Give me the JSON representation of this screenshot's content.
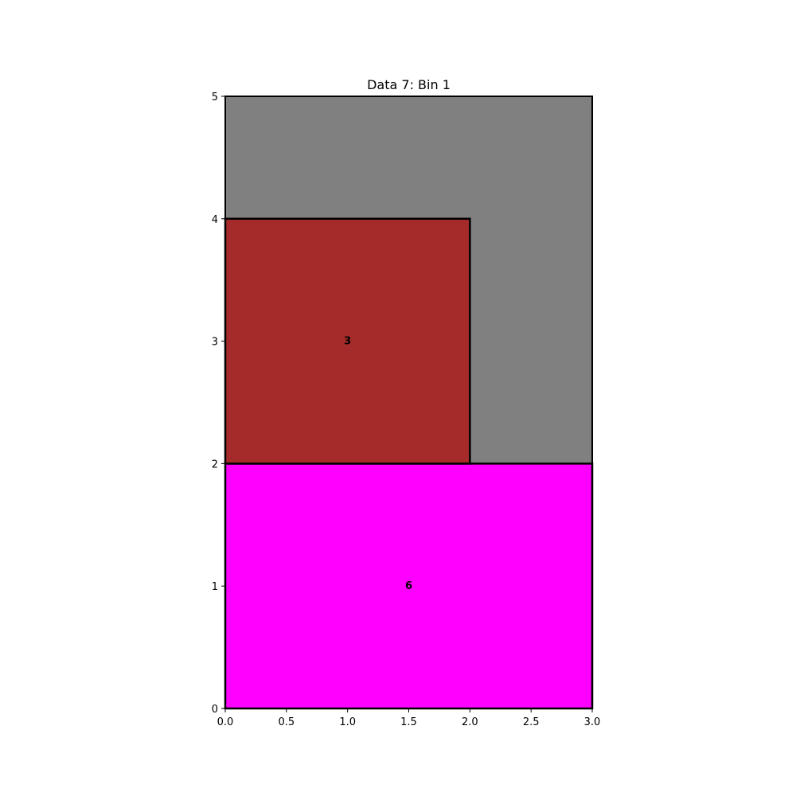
{
  "chart_data": {
    "type": "bin-packing",
    "title": "Data 7: Bin 1",
    "xlim": [
      0,
      3
    ],
    "ylim": [
      0,
      5
    ],
    "xticks": [
      "0.0",
      "0.5",
      "1.0",
      "1.5",
      "2.0",
      "2.5",
      "3.0"
    ],
    "yticks": [
      "0",
      "1",
      "2",
      "3",
      "4",
      "5"
    ],
    "xtick_values": [
      0,
      0.5,
      1,
      1.5,
      2,
      2.5,
      3
    ],
    "ytick_values": [
      0,
      1,
      2,
      3,
      4,
      5
    ],
    "grid": false,
    "bin": {
      "x": 0,
      "y": 0,
      "w": 3,
      "h": 5,
      "color": "#808080"
    },
    "items": [
      {
        "label": "6",
        "x": 0,
        "y": 0,
        "w": 3,
        "h": 2,
        "color": "#ff00ff"
      },
      {
        "label": "3",
        "x": 0,
        "y": 2,
        "w": 2,
        "h": 2,
        "color": "#a52a2a"
      }
    ]
  }
}
